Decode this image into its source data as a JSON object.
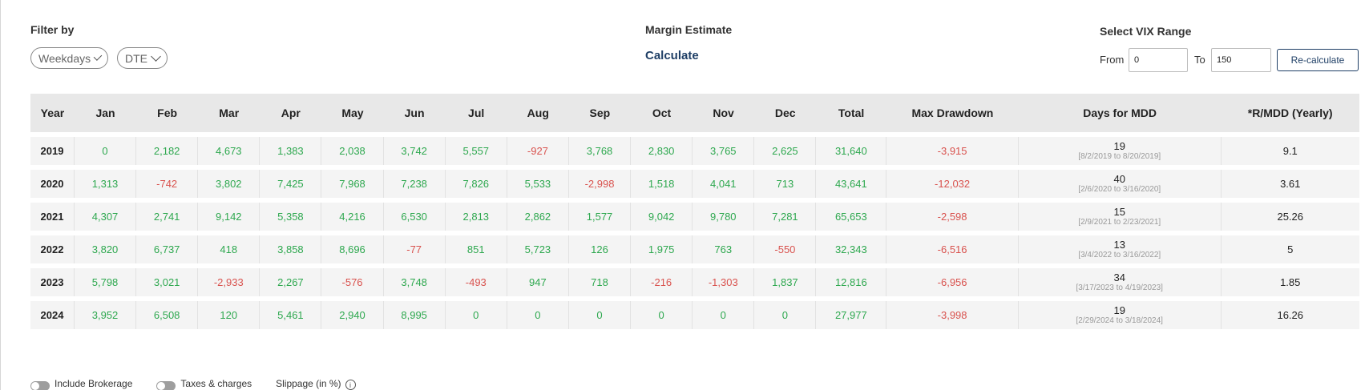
{
  "filter": {
    "label": "Filter by",
    "weekdays": "Weekdays",
    "dte": "DTE"
  },
  "margin": {
    "label": "Margin Estimate",
    "calculate": "Calculate"
  },
  "vix": {
    "label": "Select VIX Range",
    "from_label": "From",
    "to_label": "To",
    "from_value": "0",
    "to_value": "150",
    "recalc": "Re-calculate"
  },
  "colors": {
    "positive": "#2ea84f",
    "negative": "#d9534f",
    "link": "#1f3f66",
    "header_bg": "#e8e8e8",
    "row_bg": "#f4f4f4"
  },
  "table": {
    "headers": [
      "Year",
      "Jan",
      "Feb",
      "Mar",
      "Apr",
      "May",
      "Jun",
      "Jul",
      "Aug",
      "Sep",
      "Oct",
      "Nov",
      "Dec",
      "Total",
      "Max Drawdown",
      "Days for MDD",
      "*R/MDD (Yearly)"
    ],
    "rows": [
      {
        "year": "2019",
        "months": [
          "0",
          "2,182",
          "4,673",
          "1,383",
          "2,038",
          "3,742",
          "5,557",
          "-927",
          "3,768",
          "2,830",
          "3,765",
          "2,625"
        ],
        "total": "31,640",
        "mdd": "-3,915",
        "days": "19",
        "range": "[8/2/2019 to 8/20/2019]",
        "rmdd": "9.1"
      },
      {
        "year": "2020",
        "months": [
          "1,313",
          "-742",
          "3,802",
          "7,425",
          "7,968",
          "7,238",
          "7,826",
          "5,533",
          "-2,998",
          "1,518",
          "4,041",
          "713"
        ],
        "total": "43,641",
        "mdd": "-12,032",
        "days": "40",
        "range": "[2/6/2020 to 3/16/2020]",
        "rmdd": "3.61"
      },
      {
        "year": "2021",
        "months": [
          "4,307",
          "2,741",
          "9,142",
          "5,358",
          "4,216",
          "6,530",
          "2,813",
          "2,862",
          "1,577",
          "9,042",
          "9,780",
          "7,281"
        ],
        "total": "65,653",
        "mdd": "-2,598",
        "days": "15",
        "range": "[2/9/2021 to 2/23/2021]",
        "rmdd": "25.26"
      },
      {
        "year": "2022",
        "months": [
          "3,820",
          "6,737",
          "418",
          "3,858",
          "8,696",
          "-77",
          "851",
          "5,723",
          "126",
          "1,975",
          "763",
          "-550"
        ],
        "total": "32,343",
        "mdd": "-6,516",
        "days": "13",
        "range": "[3/4/2022 to 3/16/2022]",
        "rmdd": "5"
      },
      {
        "year": "2023",
        "months": [
          "5,798",
          "3,021",
          "-2,933",
          "2,267",
          "-576",
          "3,748",
          "-493",
          "947",
          "718",
          "-216",
          "-1,303",
          "1,837"
        ],
        "total": "12,816",
        "mdd": "-6,956",
        "days": "34",
        "range": "[3/17/2023 to 4/19/2023]",
        "rmdd": "1.85"
      },
      {
        "year": "2024",
        "months": [
          "3,952",
          "6,508",
          "120",
          "5,461",
          "2,940",
          "8,995",
          "0",
          "0",
          "0",
          "0",
          "0",
          "0"
        ],
        "total": "27,977",
        "mdd": "-3,998",
        "days": "19",
        "range": "[2/29/2024 to 3/18/2024]",
        "rmdd": "16.26"
      }
    ]
  },
  "bottom": {
    "brokerage": "Include Brokerage",
    "taxes": "Taxes & charges",
    "slippage": "Slippage (in %)",
    "info_icon": "i"
  }
}
